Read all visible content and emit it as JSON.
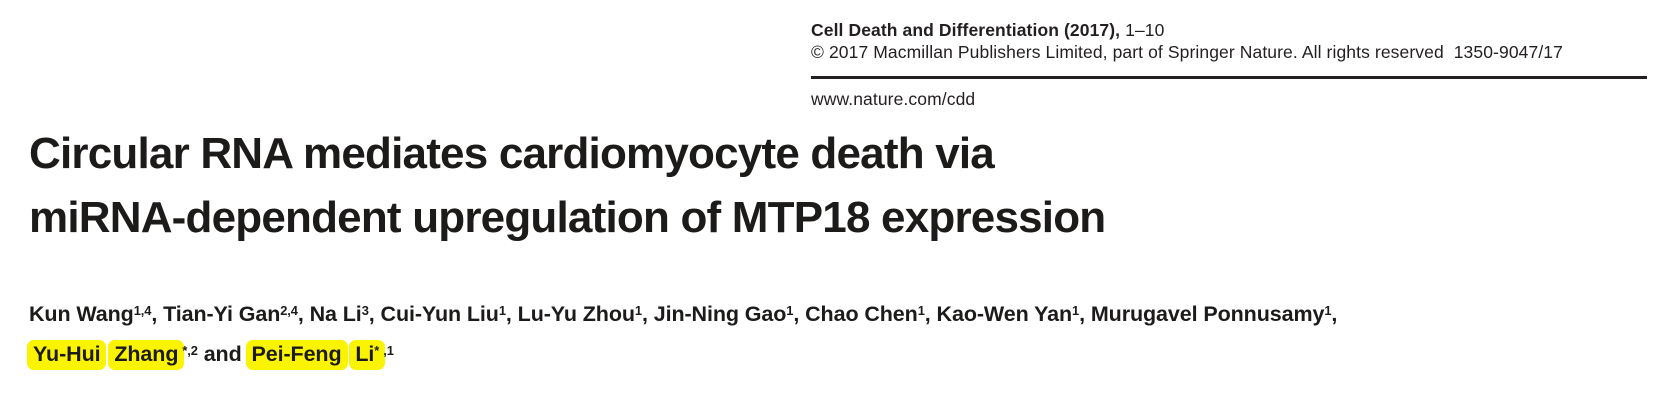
{
  "journal_header": {
    "name_and_year": "Cell Death and Differentiation (2017), ",
    "pages": "1–10",
    "copyright": "© 2017 Macmillan Publishers Limited, part of Springer Nature. All rights reserved  1350-9047/17",
    "website": "www.nature.com/cdd"
  },
  "title": {
    "line1": "Circular RNA mediates cardiomyocyte death via",
    "line2": "miRNA-dependent upregulation of MTP18 expression"
  },
  "authors": {
    "line1": [
      {
        "text": "Kun Wang",
        "sup": "1,4"
      },
      {
        "text": ", "
      },
      {
        "text": "Tian-Yi Gan",
        "sup": "2,4"
      },
      {
        "text": ", "
      },
      {
        "text": "Na Li",
        "sup": "3"
      },
      {
        "text": ", "
      },
      {
        "text": "Cui-Yun Liu",
        "sup": "1"
      },
      {
        "text": ", "
      },
      {
        "text": "Lu-Yu Zhou",
        "sup": "1"
      },
      {
        "text": ", "
      },
      {
        "text": "Jin-Ning Gao",
        "sup": "1"
      },
      {
        "text": ", "
      },
      {
        "text": "Chao Chen",
        "sup": "1"
      },
      {
        "text": ", "
      },
      {
        "text": "Kao-Wen Yan",
        "sup": "1"
      },
      {
        "text": ", "
      },
      {
        "text": "Murugavel Ponnusamy",
        "sup": "1"
      },
      {
        "text": ","
      }
    ],
    "line2": [
      {
        "text": "Yu-Hui",
        "highlight": true
      },
      {
        "text": " "
      },
      {
        "text": "Zhang",
        "highlight": true
      },
      {
        "sup": "*,2"
      },
      {
        "text": " and "
      },
      {
        "text": "Pei-Feng",
        "highlight": true
      },
      {
        "text": " "
      },
      {
        "text": "Li",
        "highlight": true,
        "sup_hl": "*"
      },
      {
        "sup": ",1"
      }
    ]
  },
  "colors": {
    "highlight": "#fbf400",
    "text": "#1d1b1a",
    "rule": "#231f20"
  }
}
